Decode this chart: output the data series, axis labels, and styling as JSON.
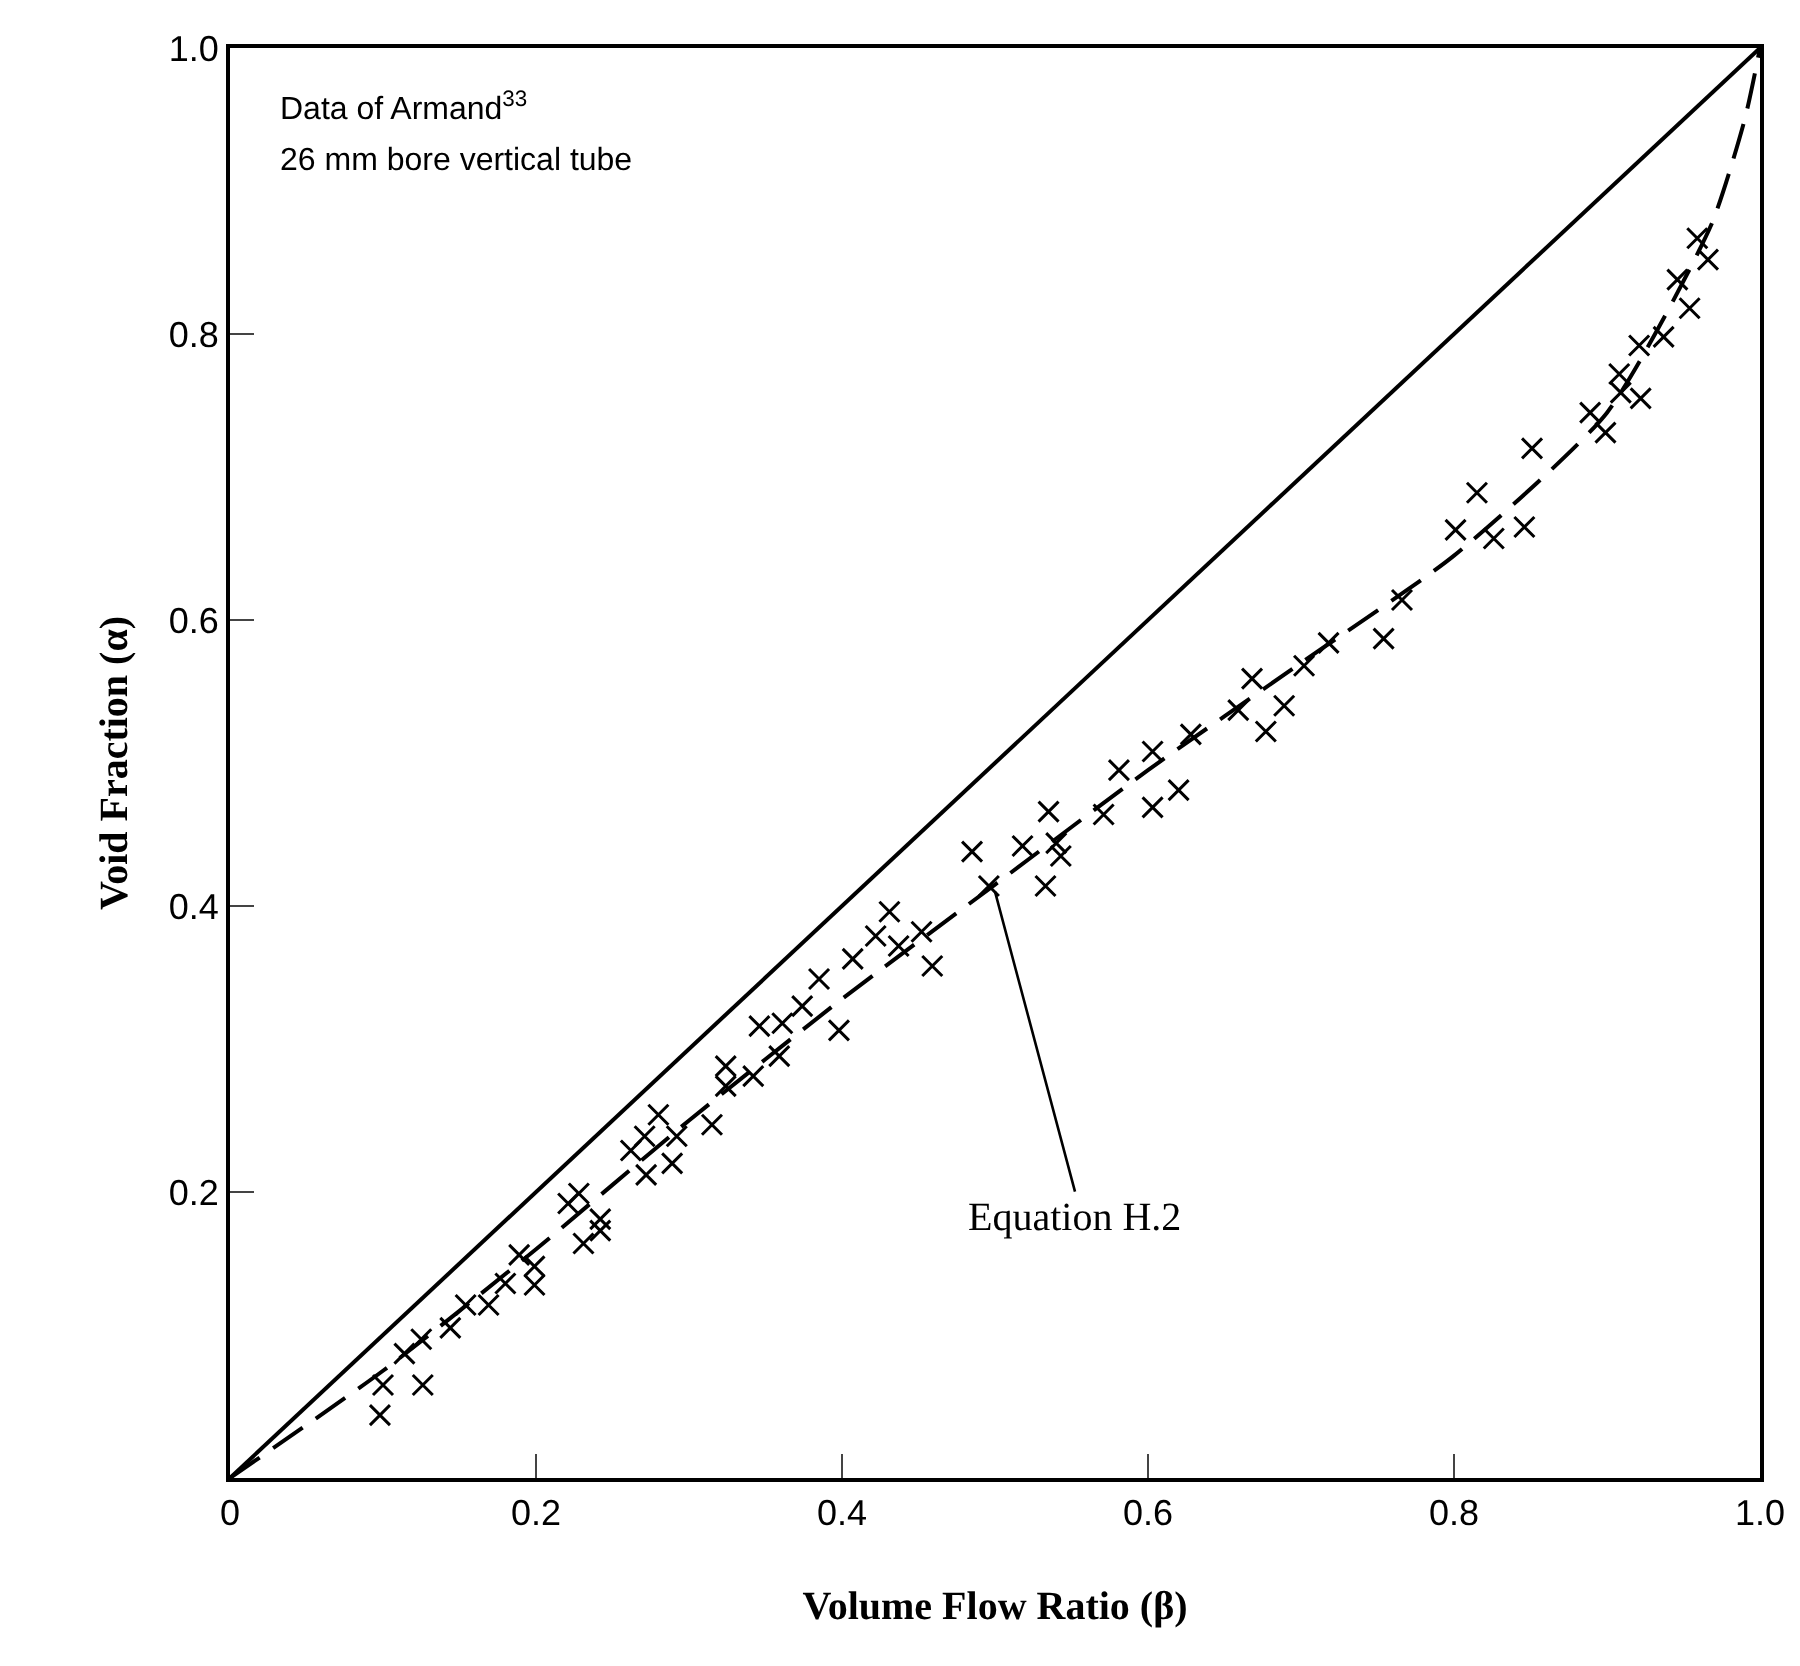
{
  "chart_data": {
    "type": "scatter",
    "xlabel": "Volume Flow Ratio (β)",
    "ylabel": "Void Fraction (α)",
    "xlim": [
      0,
      1
    ],
    "ylim": [
      0,
      1
    ],
    "xticks": [
      0,
      0.2,
      0.4,
      0.6,
      0.8,
      {
        "value": 1,
        "label": "1.0"
      }
    ],
    "yticks": [
      0.2,
      0.4,
      0.6,
      0.8,
      {
        "value": 1,
        "label": "1.0"
      }
    ],
    "grid": false,
    "marker": "cross",
    "series": [
      {
        "color": "#000000",
        "x": [
          0.098,
          0.1,
          0.114,
          0.125,
          0.126,
          0.144,
          0.154,
          0.169,
          0.18,
          0.189,
          0.199,
          0.199,
          0.221,
          0.228,
          0.231,
          0.242,
          0.242,
          0.262,
          0.271,
          0.272,
          0.28,
          0.289,
          0.292,
          0.315,
          0.324,
          0.324,
          0.342,
          0.346,
          0.359,
          0.361,
          0.374,
          0.398,
          0.385,
          0.407,
          0.422,
          0.431,
          0.437,
          0.452,
          0.459,
          0.485,
          0.496,
          0.518,
          0.533,
          0.535,
          0.54,
          0.543,
          0.571,
          0.581,
          0.603,
          0.603,
          0.62,
          0.628,
          0.659,
          0.668,
          0.677,
          0.689,
          0.702,
          0.718,
          0.754,
          0.766,
          0.801,
          0.815,
          0.826,
          0.846,
          0.851,
          0.889,
          0.899,
          0.908,
          0.909,
          0.922,
          0.921,
          0.937,
          0.954,
          0.946,
          0.959,
          0.966
        ],
        "values": [
          0.044,
          0.065,
          0.087,
          0.097,
          0.065,
          0.105,
          0.121,
          0.121,
          0.136,
          0.156,
          0.148,
          0.135,
          0.192,
          0.199,
          0.164,
          0.173,
          0.181,
          0.229,
          0.239,
          0.212,
          0.254,
          0.22,
          0.239,
          0.247,
          0.288,
          0.274,
          0.281,
          0.316,
          0.295,
          0.318,
          0.33,
          0.313,
          0.349,
          0.363,
          0.379,
          0.396,
          0.372,
          0.382,
          0.358,
          0.438,
          0.414,
          0.442,
          0.414,
          0.466,
          0.444,
          0.435,
          0.464,
          0.495,
          0.508,
          0.469,
          0.481,
          0.52,
          0.537,
          0.559,
          0.522,
          0.54,
          0.568,
          0.584,
          0.587,
          0.614,
          0.663,
          0.689,
          0.657,
          0.665,
          0.72,
          0.745,
          0.731,
          0.772,
          0.759,
          0.755,
          0.792,
          0.798,
          0.818,
          0.838,
          0.867,
          0.852
        ]
      },
      {
        "type": "line",
        "color": "#000000",
        "line_style": "solid",
        "marker": "none",
        "x": [
          0,
          1
        ],
        "values": [
          0,
          1
        ]
      },
      {
        "type": "line",
        "color": "#000000",
        "line_style": "dashed",
        "marker": "none",
        "x": [
          0,
          0.1,
          0.2,
          0.3,
          0.4,
          0.5,
          0.6,
          0.7,
          0.8,
          0.9,
          0.968,
          0.99,
          1
        ],
        "values": [
          0,
          0.075,
          0.16,
          0.25,
          0.335,
          0.415,
          0.495,
          0.57,
          0.645,
          0.745,
          0.876,
          0.95,
          1
        ]
      }
    ],
    "annotations": [
      "Data of Armand$^{33}$",
      "26 mm bore vertical tube",
      {
        "text": "Equation H.2",
        "x": 0.5,
        "y": 0.41
      }
    ]
  }
}
